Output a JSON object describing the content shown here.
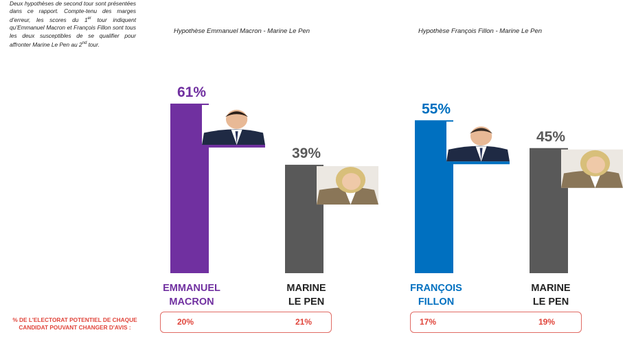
{
  "intro": {
    "text_part1": "Deux hypothèses de second tour sont présentées dans ce rapport. Compte-tenu des marges d’erreur, les scores du 1",
    "sup1": "er",
    "text_part2": " tour indiquent qu’Emmanuel Macron et François Fillon sont tous les deux susceptibles de se qualifier pour affronter Marine Le Pen au 2",
    "sup2": "nd",
    "text_part3": " tour."
  },
  "footnote": {
    "line1": "% DE L'ELECTORAT POTENTIEL DE CHAQUE",
    "line2": "CANDIDAT POUVANT CHANGER D'AVIS :"
  },
  "colors": {
    "macron": "#7030a0",
    "fillon": "#0070c0",
    "lepen": "#595959",
    "change": "#e0453b"
  },
  "chart_data": [
    {
      "type": "bar",
      "title": "Hypothèse Emmanuel Macron - Marine Le Pen",
      "categories": [
        "EMMANUEL MACRON",
        "MARINE LE PEN"
      ],
      "label_lines": [
        [
          "EMMANUEL",
          "MACRON"
        ],
        [
          "MARINE",
          "LE PEN"
        ]
      ],
      "values": [
        61,
        39
      ],
      "value_labels": [
        "61%",
        "39%"
      ],
      "colors": [
        "#7030a0",
        "#595959"
      ],
      "label_colors": [
        "#7030a0",
        "#222222"
      ],
      "photos": [
        "macron-photo",
        "lepen-photo"
      ],
      "change_values": [
        "20%",
        "21%"
      ]
    },
    {
      "type": "bar",
      "title": "Hypothèse François Fillon - Marine Le Pen",
      "categories": [
        "FRANÇOIS FILLON",
        "MARINE LE PEN"
      ],
      "label_lines": [
        [
          "FRANÇOIS",
          "FILLON"
        ],
        [
          "MARINE",
          "LE PEN"
        ]
      ],
      "values": [
        55,
        45
      ],
      "value_labels": [
        "55%",
        "45%"
      ],
      "colors": [
        "#0070c0",
        "#595959"
      ],
      "label_colors": [
        "#0070c0",
        "#222222"
      ],
      "photos": [
        "fillon-photo",
        "lepen-photo"
      ],
      "change_values": [
        "17%",
        "19%"
      ]
    }
  ]
}
